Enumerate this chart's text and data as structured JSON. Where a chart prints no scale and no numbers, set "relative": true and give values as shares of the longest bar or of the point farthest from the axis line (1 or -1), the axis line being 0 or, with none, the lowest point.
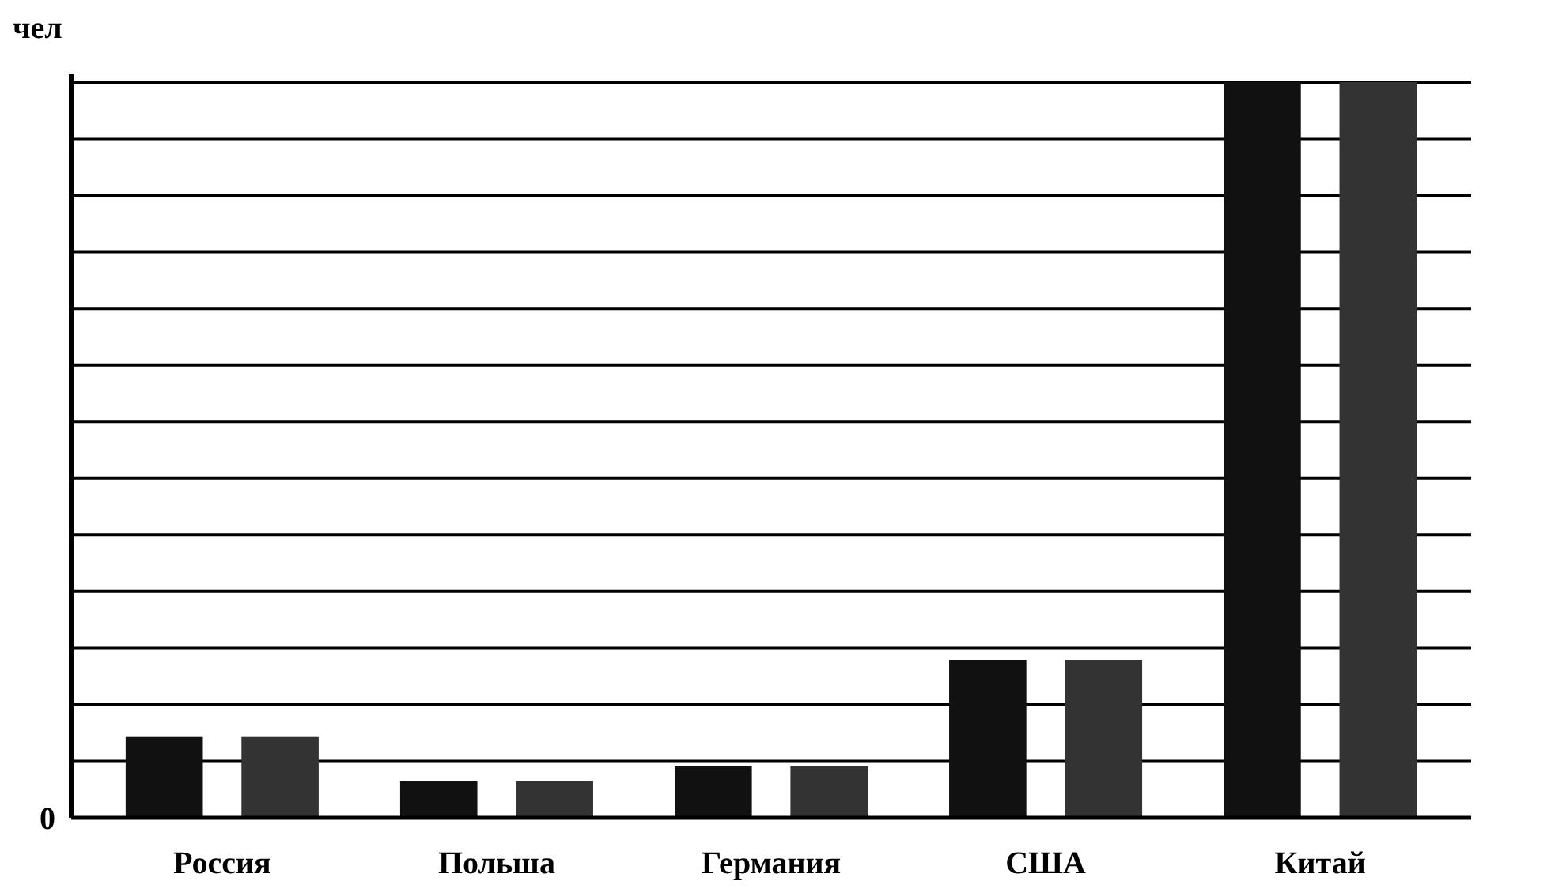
{
  "chart_data": {
    "type": "bar",
    "ylabel": "чел",
    "relative": true,
    "grid": true,
    "annotations": [
      "0"
    ],
    "categories": [
      "Россия",
      "Польша",
      "Германия",
      "США",
      "Китай"
    ],
    "series": [
      {
        "color": "#111111",
        "values": [
          0.11,
          0.05,
          0.07,
          0.215,
          1
        ]
      },
      {
        "color": "#333333",
        "values": [
          0.11,
          0.05,
          0.07,
          0.215,
          1
        ]
      }
    ]
  }
}
